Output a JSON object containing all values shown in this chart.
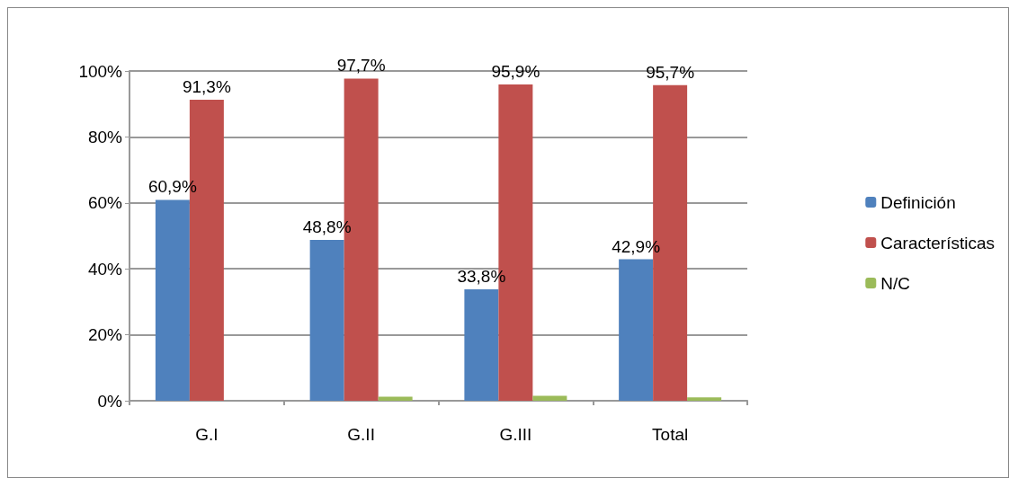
{
  "chart_data": {
    "type": "bar",
    "categories": [
      "G.I",
      "G.II",
      "G.III",
      "Total"
    ],
    "series": [
      {
        "name": "Definición",
        "color": "#4f81bd",
        "values": [
          60.9,
          48.8,
          33.8,
          42.9
        ],
        "value_labels": [
          "60,9%",
          "48,8%",
          "33,8%",
          "42,9%"
        ]
      },
      {
        "name": "Características",
        "color": "#c0504d",
        "values": [
          91.3,
          97.7,
          95.9,
          95.7
        ],
        "value_labels": [
          "91,3%",
          "97,7%",
          "95,9%",
          "95,7%"
        ]
      },
      {
        "name": "N/C",
        "color": "#9bbb59",
        "values": [
          0,
          1.2,
          1.5,
          1.0
        ]
      }
    ],
    "ylim": [
      0,
      100
    ],
    "yticks": [
      {
        "value": 0,
        "label": "0%"
      },
      {
        "value": 20,
        "label": "20%"
      },
      {
        "value": 40,
        "label": "40%"
      },
      {
        "value": 60,
        "label": "60%"
      },
      {
        "value": 80,
        "label": "80%"
      },
      {
        "value": 100,
        "label": "100%"
      }
    ],
    "grid": "y",
    "legend": "right"
  }
}
